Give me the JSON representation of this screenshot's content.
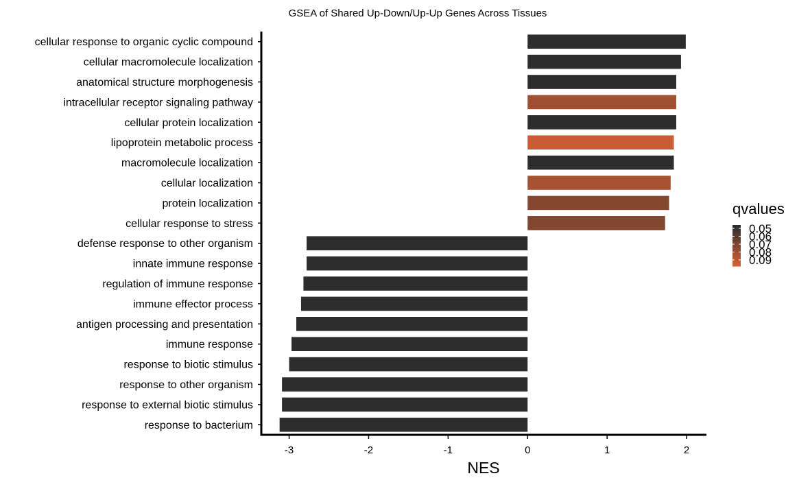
{
  "chart_data": {
    "type": "bar",
    "orientation": "horizontal",
    "title": "GSEA of Shared Up-Down/Up-Up Genes Across Tissues",
    "xlabel": "NES",
    "ylabel": "",
    "xlim": [
      -3.35,
      2.25
    ],
    "xticks": [
      -3,
      -2,
      -1,
      0,
      1,
      2
    ],
    "grid": false,
    "legend": {
      "title": "qvalues",
      "position": "right",
      "type": "colorbar",
      "labels": [
        "0.05",
        "0.06",
        "0.07",
        "0.08",
        "0.09"
      ],
      "low_color": "#2d2d2d",
      "high_color": "#d45f35"
    },
    "categories": [
      "cellular response to organic cyclic compound",
      "cellular macromolecule localization",
      "anatomical structure morphogenesis",
      "intracellular receptor signaling pathway",
      "cellular protein localization",
      "lipoprotein metabolic process",
      "macromolecule localization",
      "cellular localization",
      "protein localization",
      "cellular response to stress",
      "defense response to other organism",
      "innate immune response",
      "regulation of immune response",
      "immune effector process",
      "antigen processing and presentation",
      "immune response",
      "response to biotic stimulus",
      "response to other organism",
      "response to external biotic stimulus",
      "response to bacterium"
    ],
    "values": [
      1.99,
      1.93,
      1.87,
      1.87,
      1.87,
      1.84,
      1.84,
      1.8,
      1.78,
      1.73,
      -2.78,
      -2.78,
      -2.82,
      -2.85,
      -2.91,
      -2.97,
      -3.0,
      -3.09,
      -3.09,
      -3.12
    ],
    "qvalues": [
      0.05,
      0.05,
      0.05,
      0.081,
      0.05,
      0.092,
      0.05,
      0.083,
      0.074,
      0.073,
      0.05,
      0.05,
      0.05,
      0.05,
      0.05,
      0.05,
      0.05,
      0.05,
      0.05,
      0.05
    ]
  }
}
